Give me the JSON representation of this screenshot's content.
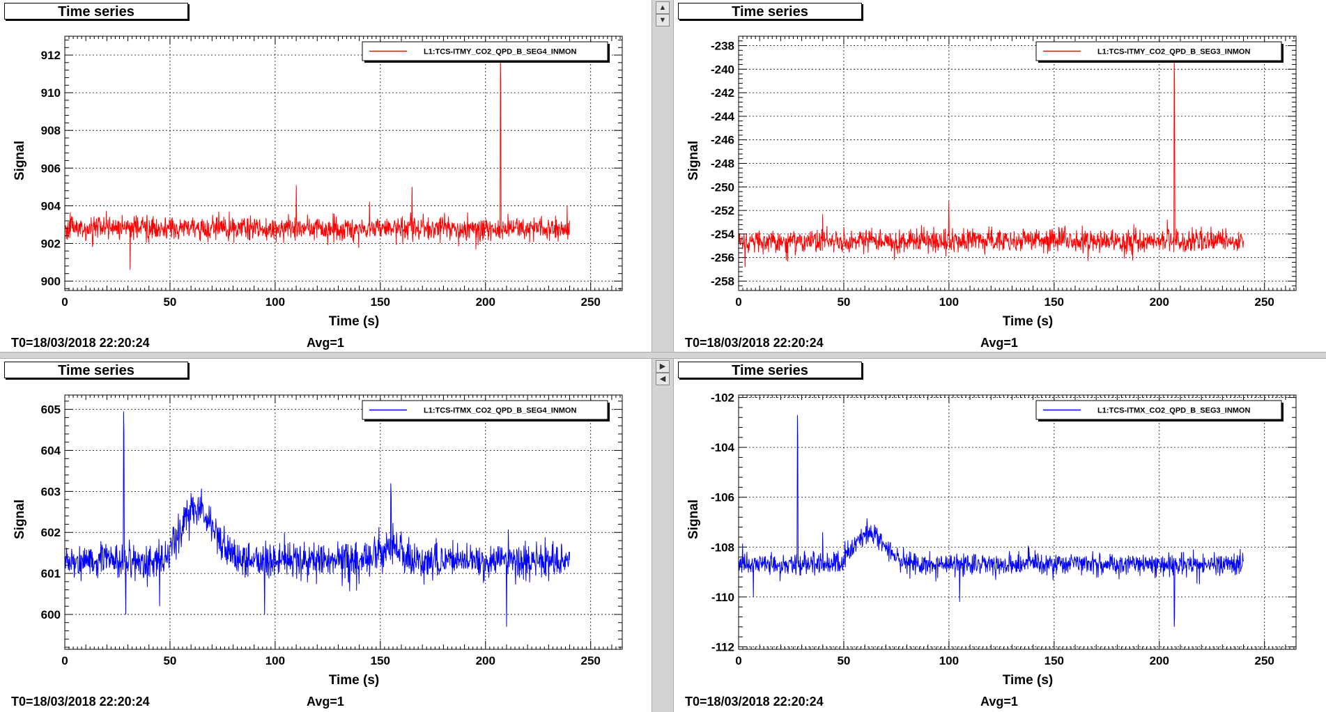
{
  "chart_data": [
    {
      "type": "line",
      "panel_title": "Time series",
      "xlabel": "Time (s)",
      "ylabel": "Signal",
      "xlim": [
        0,
        265
      ],
      "ylim": [
        899.5,
        913
      ],
      "xticks": [
        0,
        50,
        100,
        150,
        200,
        250
      ],
      "yticks": [
        900,
        902,
        904,
        906,
        908,
        910,
        912
      ],
      "grid": true,
      "legend_position": "top-right",
      "series": [
        {
          "name": "L1:TCS-ITMY_CO2_QPD_B_SEG4_INMON",
          "color": "#ff0000",
          "x_range": [
            0,
            240
          ],
          "baseline": 902.8,
          "noise": 0.55,
          "bumps": [],
          "spikes": [
            [
              207,
              911.8
            ]
          ],
          "outliers": [
            [
              31,
              900.6
            ],
            [
              110,
              905.1
            ],
            [
              165,
              905.0
            ]
          ]
        }
      ],
      "footer": {
        "t0": "T0=18/03/2018 22:20:24",
        "avg": "Avg=1"
      }
    },
    {
      "type": "line",
      "panel_title": "Time series",
      "xlabel": "Time (s)",
      "ylabel": "Signal",
      "xlim": [
        0,
        265
      ],
      "ylim": [
        -258.8,
        -237.2
      ],
      "xticks": [
        0,
        50,
        100,
        150,
        200,
        250
      ],
      "yticks": [
        -238,
        -240,
        -242,
        -244,
        -246,
        -248,
        -250,
        -252,
        -254,
        -256,
        -258
      ],
      "grid": true,
      "legend_position": "top-right",
      "series": [
        {
          "name": "L1:TCS-ITMY_CO2_QPD_B_SEG3_INMON",
          "color": "#ff0000",
          "x_range": [
            0,
            240
          ],
          "baseline": -254.6,
          "noise": 0.85,
          "bumps": [],
          "spikes": [
            [
              207,
              -239.2
            ]
          ],
          "outliers": [
            [
              3,
              -256.8
            ],
            [
              100,
              -251.2
            ],
            [
              40,
              -252.3
            ]
          ]
        }
      ],
      "footer": {
        "t0": "T0=18/03/2018 22:20:24",
        "avg": "Avg=1"
      }
    },
    {
      "type": "line",
      "panel_title": "Time series",
      "xlabel": "Time (s)",
      "ylabel": "Signal",
      "xlim": [
        0,
        265
      ],
      "ylim": [
        599.15,
        605.35
      ],
      "xticks": [
        0,
        50,
        100,
        150,
        200,
        250
      ],
      "yticks": [
        600,
        601,
        602,
        603,
        604,
        605
      ],
      "grid": true,
      "legend_position": "top-right",
      "series": [
        {
          "name": "L1:TCS-ITMX_CO2_QPD_B_SEG4_INMON",
          "color": "#0000ff",
          "x_range": [
            0,
            240
          ],
          "baseline": 601.3,
          "noise": 0.38,
          "bumps": [
            [
              63,
              1.3,
              11
            ],
            [
              155,
              0.35,
              8
            ]
          ],
          "spikes": [
            [
              28,
              604.95
            ],
            [
              155,
              603.2
            ]
          ],
          "outliers": [
            [
              29,
              600.0
            ],
            [
              210,
              599.7
            ],
            [
              45,
              600.2
            ],
            [
              95,
              600.0
            ]
          ]
        }
      ],
      "footer": {
        "t0": "T0=18/03/2018 22:20:24",
        "avg": "Avg=1"
      }
    },
    {
      "type": "line",
      "panel_title": "Time series",
      "xlabel": "Time (s)",
      "ylabel": "Signal",
      "xlim": [
        0,
        265
      ],
      "ylim": [
        -112.1,
        -101.9
      ],
      "xticks": [
        0,
        50,
        100,
        150,
        200,
        250
      ],
      "yticks": [
        -102,
        -104,
        -106,
        -108,
        -110,
        -112
      ],
      "grid": true,
      "legend_position": "top-right",
      "series": [
        {
          "name": "L1:TCS-ITMX_CO2_QPD_B_SEG3_INMON",
          "color": "#0000ff",
          "x_range": [
            0,
            240
          ],
          "baseline": -108.7,
          "noise": 0.4,
          "bumps": [
            [
              62,
              1.3,
              10
            ]
          ],
          "spikes": [
            [
              28,
              -102.7
            ]
          ],
          "dips": [
            [
              207,
              -111.2
            ]
          ],
          "outliers": [
            [
              7,
              -110.0
            ],
            [
              105,
              -110.2
            ],
            [
              40,
              -107.4
            ]
          ]
        }
      ],
      "footer": {
        "t0": "T0=18/03/2018 22:20:24",
        "avg": "Avg=1"
      }
    }
  ]
}
